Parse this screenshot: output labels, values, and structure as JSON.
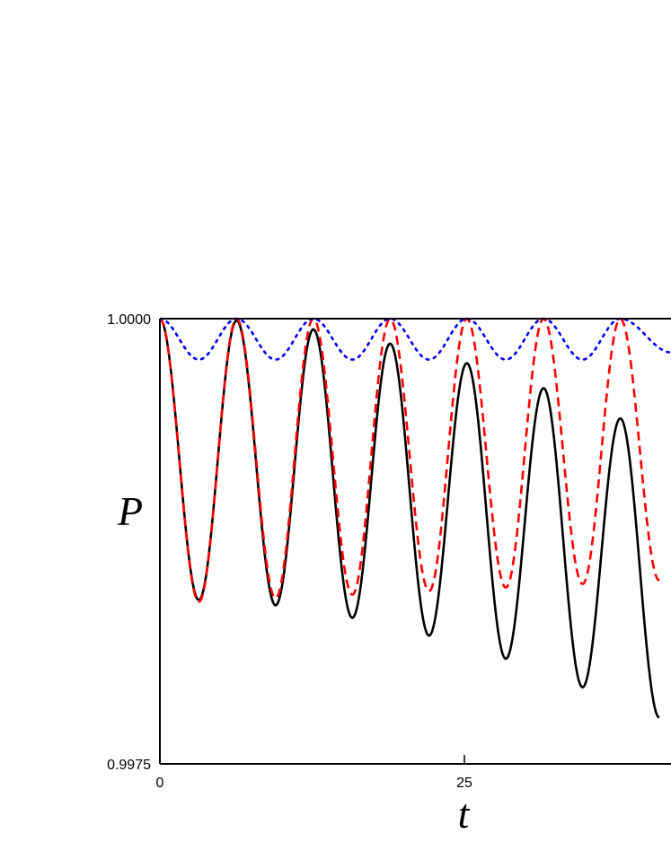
{
  "chart_data": {
    "type": "line",
    "title": "",
    "xlabel": "t",
    "ylabel": "P",
    "xlim": [
      0,
      42
    ],
    "ylim": [
      0.9975,
      1.0
    ],
    "x_ticks": [
      {
        "value": 0,
        "label": "0"
      },
      {
        "value": 25,
        "label": "25"
      }
    ],
    "y_ticks": [
      {
        "value": 1.0,
        "label": "1.0000"
      },
      {
        "value": 0.9975,
        "label": "0.9975"
      }
    ],
    "grid": false,
    "series": [
      {
        "style": "solid",
        "color": "#000000",
        "period": 6.3,
        "x": [
          0,
          3.2,
          6.3,
          9.5,
          12.6,
          15.8,
          18.9,
          22.1,
          25.2,
          28.4,
          31.5,
          34.7,
          37.8,
          41.0
        ],
        "y": [
          1.0,
          0.99842,
          0.99999,
          0.99839,
          0.99994,
          0.99832,
          0.99986,
          0.99822,
          0.99975,
          0.99809,
          0.99961,
          0.99793,
          0.99944,
          0.99776
        ]
      },
      {
        "style": "dashed",
        "color": "#ff0000",
        "period": 6.3,
        "x": [
          0,
          3.2,
          6.3,
          9.5,
          12.6,
          15.8,
          18.9,
          22.1,
          25.2,
          28.4,
          31.5,
          34.7,
          37.8,
          41.0
        ],
        "y": [
          1.0,
          0.99841,
          1.0,
          0.99843,
          1.0,
          0.99845,
          1.0,
          0.99847,
          1.0,
          0.99849,
          1.0,
          0.99851,
          1.0,
          0.99853
        ]
      },
      {
        "style": "dotted",
        "color": "#0000ff",
        "period": 6.3,
        "x": [
          0,
          3.2,
          6.3,
          9.5,
          12.6,
          15.8,
          18.9,
          22.1,
          25.2,
          28.4,
          31.5,
          34.7,
          37.8,
          42.0
        ],
        "y": [
          1.0,
          0.99977,
          1.0,
          0.99977,
          1.0,
          0.99977,
          1.0,
          0.99977,
          1.0,
          0.99977,
          1.0,
          0.99977,
          1.0,
          0.99981
        ]
      }
    ]
  }
}
